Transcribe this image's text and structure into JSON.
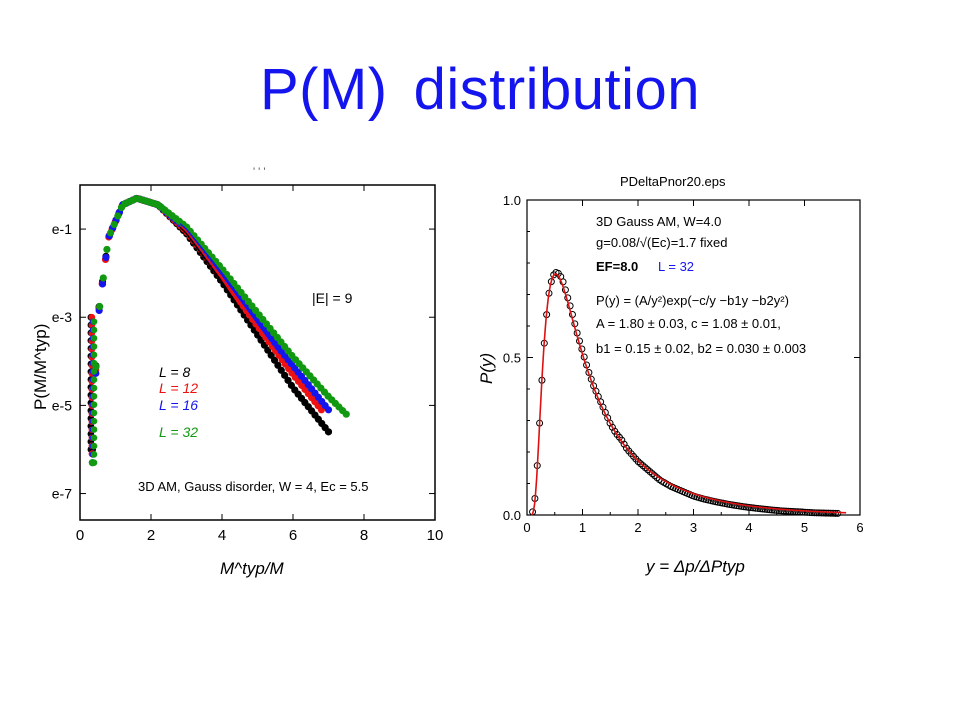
{
  "slide": {
    "title_part1": "P(M)",
    "title_part2": "distribution",
    "title_color": "#1414ee"
  },
  "chart_data": [
    {
      "type": "scatter",
      "title": "",
      "xlabel": "M^typ/M",
      "ylabel": "P(M/M^typ)",
      "xlim": [
        0,
        10
      ],
      "ylim": [
        -7.6,
        0
      ],
      "y_scale": "log-e",
      "xticks": [
        "0",
        "2",
        "4",
        "6",
        "8",
        "10"
      ],
      "yticks": [
        "e-1",
        "e-3",
        "e-5",
        "e-7"
      ],
      "yticks_values": [
        -1,
        -3,
        -5,
        -7
      ],
      "annotation_top": "|E| = 9",
      "annotation_bottom": "3D AM, Gauss disorder, W = 4, Ec = 5.5",
      "legend_position": "center-left",
      "series": [
        {
          "name": "L = 8",
          "color": "#000000",
          "x": [
            0.35,
            0.5,
            0.8,
            1.2,
            1.6,
            2.2,
            3.0,
            4.0,
            5.0,
            6.0,
            6.5,
            7.0
          ],
          "y": [
            -6.0,
            -3.0,
            -1.2,
            -0.45,
            -0.3,
            -0.45,
            -1.1,
            -2.2,
            -3.4,
            -4.6,
            -5.1,
            -5.6
          ]
        },
        {
          "name": "L = 12",
          "color": "#ee1111",
          "x": [
            0.35,
            0.5,
            0.8,
            1.2,
            1.6,
            2.2,
            3.0,
            4.0,
            5.0,
            6.0,
            6.8
          ],
          "y": [
            -6.1,
            -3.0,
            -1.2,
            -0.45,
            -0.3,
            -0.45,
            -1.05,
            -2.1,
            -3.2,
            -4.3,
            -5.1
          ]
        },
        {
          "name": "L = 16",
          "color": "#1515ee",
          "x": [
            0.35,
            0.5,
            0.8,
            1.2,
            1.6,
            2.2,
            3.0,
            4.0,
            5.0,
            6.0,
            7.0
          ],
          "y": [
            -6.3,
            -3.1,
            -1.2,
            -0.45,
            -0.3,
            -0.45,
            -1.0,
            -2.0,
            -3.1,
            -4.1,
            -5.1
          ]
        },
        {
          "name": "L = 32",
          "color": "#119911",
          "x": [
            0.35,
            0.5,
            0.8,
            1.2,
            1.6,
            2.2,
            3.0,
            4.0,
            5.0,
            6.0,
            7.0,
            7.5
          ],
          "y": [
            -6.3,
            -3.1,
            -1.2,
            -0.45,
            -0.3,
            -0.45,
            -0.95,
            -1.9,
            -2.9,
            -3.9,
            -4.8,
            -5.2
          ]
        }
      ]
    },
    {
      "type": "scatter",
      "title": "PDeltaPnor20.eps",
      "xlabel": "y = Δp/ΔPtyp",
      "ylabel": "P(y)",
      "xlim": [
        0,
        6
      ],
      "ylim": [
        0,
        1.0
      ],
      "xticks": [
        "0",
        "1",
        "2",
        "3",
        "4",
        "5",
        "6"
      ],
      "yticks": [
        "0.0",
        "0.5",
        "1.0"
      ],
      "yticks_values": [
        0,
        0.5,
        1.0
      ],
      "annotations": [
        "3D Gauss AM, W=4.0",
        "g=0.08/√(Ec)=1.7 fixed",
        "EF=8.0",
        "L = 32",
        "P(y) = (A/y²)exp(−c/y −b1y −b2y²)",
        "A = 1.80 ± 0.03, c = 1.08 ± 0.01,",
        "b1 = 0.15 ± 0.02, b2 = 0.030 ± 0.003"
      ],
      "fit": {
        "A": 1.8,
        "c": 1.08,
        "b1": 0.15,
        "b2": 0.03,
        "color": "#dd1111"
      },
      "points": {
        "x": [
          0.1,
          0.15,
          0.2,
          0.25,
          0.3,
          0.35,
          0.4,
          0.45,
          0.5,
          0.55,
          0.6,
          0.65,
          0.7,
          0.8,
          0.9,
          1.0,
          1.1,
          1.2,
          1.3,
          1.4,
          1.5,
          1.6,
          1.7,
          1.8,
          1.9,
          2.0,
          2.2,
          2.4,
          2.6,
          2.8,
          3.0,
          3.2,
          3.4,
          3.6,
          3.8,
          4.0,
          4.2,
          4.4,
          4.6,
          4.8,
          5.0,
          5.2,
          5.4,
          5.6
        ],
        "y": [
          0.01,
          0.06,
          0.2,
          0.37,
          0.52,
          0.63,
          0.71,
          0.75,
          0.77,
          0.77,
          0.76,
          0.74,
          0.71,
          0.65,
          0.58,
          0.52,
          0.46,
          0.41,
          0.37,
          0.33,
          0.29,
          0.26,
          0.24,
          0.21,
          0.19,
          0.17,
          0.14,
          0.11,
          0.09,
          0.075,
          0.06,
          0.05,
          0.042,
          0.035,
          0.029,
          0.024,
          0.02,
          0.016,
          0.013,
          0.011,
          0.009,
          0.007,
          0.006,
          0.005
        ]
      }
    }
  ]
}
